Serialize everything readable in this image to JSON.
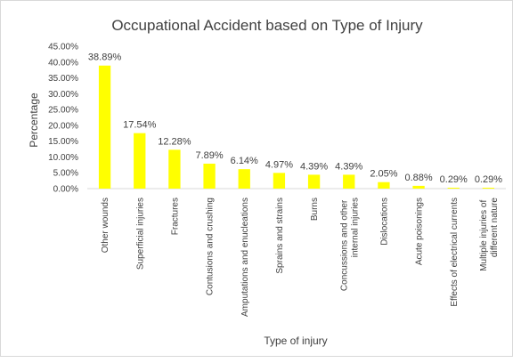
{
  "chart_data": {
    "type": "bar",
    "title": "Occupational Accident based on Type of Injury",
    "x_label": "Type of injury",
    "y_label": "Percentage",
    "categories": [
      "Other wounds",
      "Superficial injuries",
      "Fractures",
      "Contusions and crushing",
      "Amputations and enucleations",
      "Sprains and strains",
      "Burns",
      "Concussions and other internal injuries",
      "Dislocations",
      "Acute poisonings",
      "Effects of electrical currents",
      "Multiple injuries of different nature"
    ],
    "values": [
      38.89,
      17.54,
      12.28,
      7.89,
      6.14,
      4.97,
      4.39,
      4.39,
      2.05,
      0.88,
      0.29,
      0.29
    ],
    "value_labels": [
      "38.89%",
      "17.54%",
      "12.28%",
      "7.89%",
      "6.14%",
      "4.97%",
      "4.39%",
      "4.39%",
      "2.05%",
      "0.88%",
      "0.29%",
      "0.29%"
    ],
    "color": "#ffff00",
    "ylim": [
      0,
      45
    ],
    "yticks": [
      {
        "value": 0,
        "label": "0.00%"
      },
      {
        "value": 5,
        "label": "5.00%"
      },
      {
        "value": 10,
        "label": "10.00%"
      },
      {
        "value": 15,
        "label": "15.00%"
      },
      {
        "value": 20,
        "label": "20.00%"
      },
      {
        "value": 25,
        "label": "25.00%"
      },
      {
        "value": 30,
        "label": "30.00%"
      },
      {
        "value": 35,
        "label": "35.00%"
      },
      {
        "value": 40,
        "label": "40.00%"
      },
      {
        "value": 45,
        "label": "45.00%"
      }
    ]
  }
}
